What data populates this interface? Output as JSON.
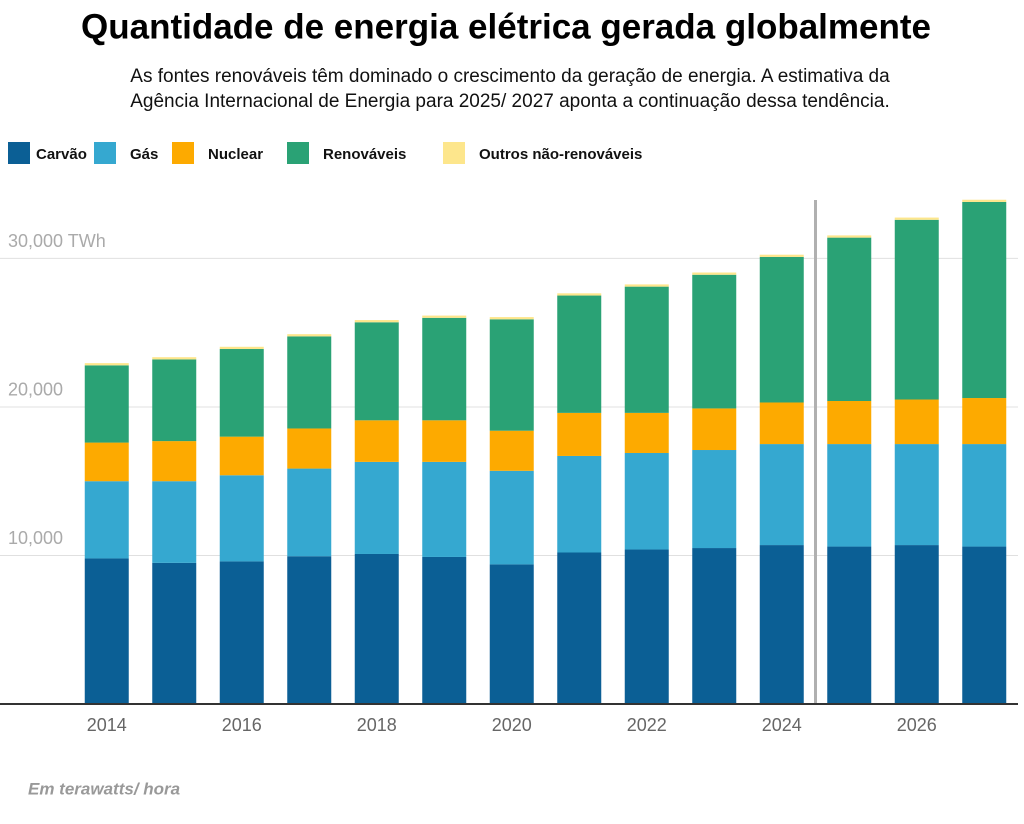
{
  "chart_data": {
    "type": "stacked-bar",
    "title": "Quantidade de energia elétrica gerada globalmente",
    "subtitle": [
      "As fontes renováveis têm dominado o crescimento da geração de energia. A estimativa da",
      "Agência Internacional de Energia para 2025/ 2027 aponta a continuação dessa tendência."
    ],
    "note": "Em terawatts/ hora",
    "categories": [
      "2014",
      null,
      "2016",
      null,
      "2018",
      null,
      "2020",
      null,
      "2022",
      null,
      "2024",
      null,
      "2026",
      null
    ],
    "series": [
      {
        "name": "Carvão",
        "color": "#0b5f95",
        "values": [
          9800,
          9500,
          9600,
          9950,
          10100,
          9900,
          9400,
          10200,
          10400,
          10500,
          10700,
          10600,
          10700,
          10600
        ]
      },
      {
        "name": "Gás",
        "color": "#35a8d0",
        "values": [
          5200,
          5500,
          5800,
          5900,
          6200,
          6400,
          6300,
          6500,
          6500,
          6600,
          6800,
          6900,
          6800,
          6900
        ]
      },
      {
        "name": "Nuclear",
        "color": "#fdaa00",
        "values": [
          2600,
          2700,
          2600,
          2700,
          2800,
          2800,
          2700,
          2900,
          2700,
          2800,
          2800,
          2900,
          3000,
          3100
        ]
      },
      {
        "name": "Renováveis",
        "color": "#2aa275",
        "values": [
          5200,
          5500,
          5900,
          6200,
          6600,
          6900,
          7500,
          7900,
          8500,
          9000,
          9800,
          11000,
          12100,
          13200
        ]
      },
      {
        "name": "Outros não-renováveis",
        "color": "#fde68c",
        "values": [
          150,
          150,
          150,
          150,
          150,
          150,
          150,
          150,
          150,
          150,
          150,
          150,
          150,
          150
        ]
      }
    ],
    "ylim": [
      0,
      34000
    ],
    "yticks": [
      {
        "value": 10000,
        "label": "10,000"
      },
      {
        "value": 20000,
        "label": "20,000"
      },
      {
        "value": 30000,
        "label": "30,000 TWh"
      }
    ],
    "grid": true,
    "legend": "top-left"
  }
}
